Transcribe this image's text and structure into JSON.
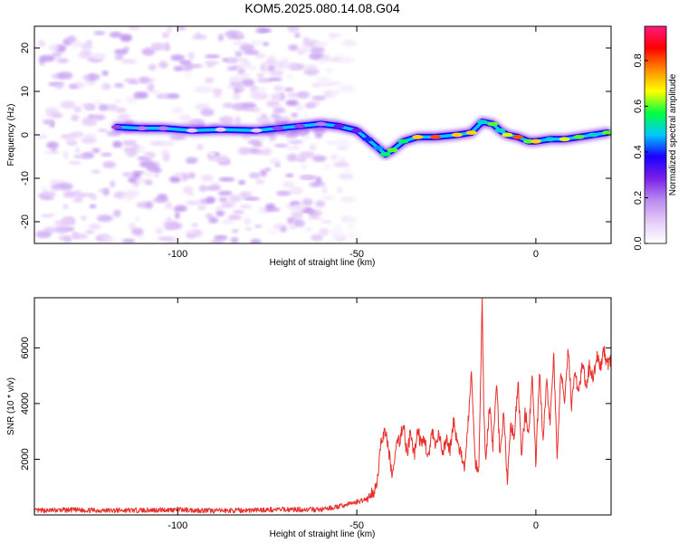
{
  "title": "KOM5.2025.080.14.08.G04",
  "chart_data": [
    {
      "type": "heatmap",
      "xlabel": "Height of straight line (km)",
      "ylabel": "Frequency (Hz)",
      "xlim": [
        -140,
        21
      ],
      "ylim": [
        -25,
        25
      ],
      "x_ticks": [
        "-100",
        "-50",
        "0"
      ],
      "x_tick_values": [
        -100,
        -50,
        0
      ],
      "y_ticks": [
        "-20",
        "-10",
        "0",
        "10",
        "20"
      ],
      "y_tick_values": [
        -20,
        -10,
        0,
        10,
        20
      ],
      "grid": false,
      "noise_region_x": [
        -138,
        -51
      ],
      "ridge": {
        "x": [
          -117,
          -110,
          -104,
          -96,
          -88,
          -78,
          -72,
          -66,
          -60,
          -55,
          -50,
          -47,
          -44,
          -42,
          -40,
          -37,
          -33,
          -28,
          -22,
          -18,
          -15,
          -12,
          -10,
          -8,
          -5,
          -2,
          0,
          4,
          8,
          12,
          16,
          20
        ],
        "y": [
          1.8,
          1.5,
          1.5,
          1.0,
          1.2,
          1.0,
          1.5,
          2.0,
          2.5,
          2.0,
          1.0,
          -1.0,
          -3.0,
          -4.5,
          -3.5,
          -1.5,
          -0.5,
          -0.5,
          0.0,
          0.5,
          3.0,
          2.5,
          1.0,
          0.0,
          -0.5,
          -1.5,
          -1.5,
          -1.0,
          -1.0,
          -0.5,
          0.0,
          0.5
        ],
        "amplitude": [
          0.25,
          0.2,
          0.2,
          0.1,
          0.1,
          0.1,
          0.25,
          0.25,
          0.2,
          0.3,
          0.3,
          0.4,
          0.45,
          0.55,
          0.6,
          0.55,
          0.7,
          0.8,
          0.7,
          0.7,
          0.5,
          0.6,
          0.5,
          0.65,
          0.8,
          0.6,
          0.7,
          0.5,
          0.65,
          0.6,
          0.5,
          0.6
        ]
      },
      "colorbar": {
        "label": "Normalized spectral amplitude",
        "range": [
          0,
          0.95
        ],
        "ticks": [
          "0.0",
          "0.2",
          "0.4",
          "0.6",
          "0.8"
        ],
        "tick_values": [
          0,
          0.2,
          0.4,
          0.6,
          0.8
        ],
        "colors": [
          "#ffffff",
          "#e6ccf8",
          "#b98af0",
          "#7a1fe8",
          "#1a00ff",
          "#00c8ff",
          "#00ff40",
          "#ffff00",
          "#ff8c00",
          "#ff0000",
          "#ff1a80"
        ]
      }
    },
    {
      "type": "line",
      "xlabel": "Height of straight line (km)",
      "ylabel": "SNR (10 * v/v)",
      "xlim": [
        -140,
        21
      ],
      "ylim": [
        0,
        7800
      ],
      "x_ticks": [
        "-100",
        "-50",
        "0"
      ],
      "x_tick_values": [
        -100,
        -50,
        0
      ],
      "y_ticks": [
        "2000",
        "4000",
        "6000"
      ],
      "y_tick_values": [
        2000,
        4000,
        6000
      ],
      "grid": false,
      "color": "#e8302c",
      "series": [
        {
          "x": [
            -140,
            -130,
            -120,
            -110,
            -100,
            -90,
            -80,
            -70,
            -60,
            -55,
            -52,
            -49,
            -47,
            -46,
            -45,
            -44,
            -43,
            -42,
            -41,
            -40,
            -39,
            -38,
            -37,
            -36,
            -35,
            -34,
            -33,
            -32,
            -31,
            -30,
            -29,
            -28,
            -27,
            -26,
            -25,
            -24,
            -23,
            -22,
            -21,
            -20,
            -19,
            -18,
            -17,
            -16,
            -15.5,
            -15,
            -14.5,
            -14,
            -13,
            -12,
            -11,
            -10,
            -9,
            -8,
            -7,
            -6,
            -5,
            -4,
            -3,
            -2,
            -1,
            0,
            1,
            2,
            3,
            4,
            5,
            6,
            7,
            8,
            9,
            10,
            11,
            12,
            13,
            14,
            15,
            16,
            17,
            18,
            19,
            20,
            21
          ],
          "y": [
            150,
            180,
            160,
            170,
            190,
            150,
            170,
            200,
            190,
            300,
            400,
            500,
            600,
            700,
            900,
            1500,
            2800,
            3000,
            2200,
            1400,
            2400,
            2700,
            3300,
            2200,
            2900,
            2100,
            3100,
            2500,
            2700,
            2000,
            3000,
            2400,
            2900,
            2100,
            2800,
            2300,
            3400,
            2600,
            2200,
            1600,
            3200,
            5100,
            2000,
            1500,
            4300,
            7800,
            3500,
            1900,
            3900,
            2500,
            4800,
            2100,
            3700,
            1200,
            3300,
            2700,
            4900,
            2000,
            3700,
            2800,
            5000,
            1800,
            5200,
            2700,
            4800,
            3300,
            5700,
            2000,
            5100,
            4100,
            6100,
            3900,
            5100,
            4300,
            5500,
            4500,
            5400,
            4800,
            5700,
            5300,
            5900,
            5400,
            5600
          ]
        }
      ]
    }
  ]
}
